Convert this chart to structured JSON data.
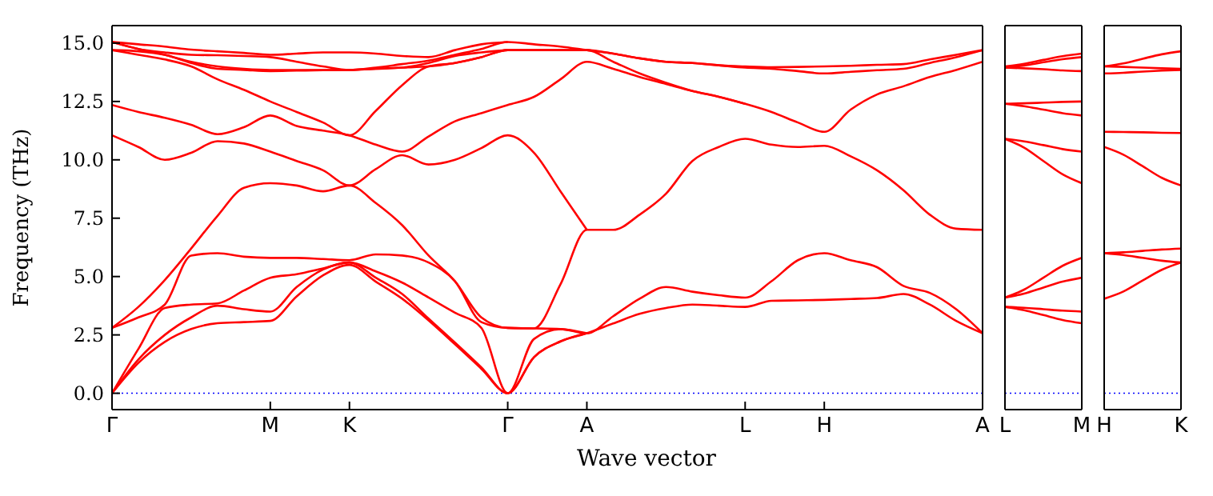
{
  "chart_data": [
    {
      "type": "line",
      "xlabel": "Wave vector",
      "ylabel": "Frequency (THz)",
      "ylim": [
        -0.7,
        15.75
      ],
      "categories": [
        "Γ",
        null,
        null,
        null,
        null,
        null,
        "M",
        null,
        null,
        "K",
        null,
        null,
        null,
        null,
        null,
        "Γ",
        null,
        null,
        "A",
        null,
        null,
        null,
        null,
        null,
        "L",
        null,
        null,
        "H",
        null,
        null,
        null,
        null,
        null,
        "A"
      ],
      "yticks": [
        {
          "value": 0,
          "label": "0.0"
        },
        {
          "value": 2.5,
          "label": "2.5"
        },
        {
          "value": 5,
          "label": "5.0"
        },
        {
          "value": 7.5,
          "label": "7.5"
        },
        {
          "value": 10,
          "label": "10.0"
        },
        {
          "value": 12.5,
          "label": "12.5"
        },
        {
          "value": 15,
          "label": "15.0"
        }
      ],
      "marker": "none",
      "line_style": "solid",
      "ref_lines": [
        {
          "axis": "y",
          "value": 0,
          "color": "#0000ff",
          "line_style": "dotted"
        }
      ],
      "series": [
        {
          "color": "#ff0000",
          "values": [
            0,
            1.3,
            2.2,
            2.75,
            3.0,
            3.05,
            3.1,
            4.15,
            5.05,
            5.5,
            4.78,
            4.05,
            3.12,
            2.1,
            1.05,
            0,
            1.55,
            2.22,
            2.57,
            2.99,
            3.4,
            3.65,
            3.8,
            3.75,
            3.7,
            3.96,
            3.98,
            4.0,
            4.04,
            4.08,
            4.25,
            3.8,
            3.1,
            2.57
          ]
        },
        {
          "color": "#ff0000",
          "values": [
            0,
            1.45,
            2.5,
            3.25,
            3.75,
            3.6,
            3.5,
            4.55,
            5.3,
            5.6,
            4.95,
            4.25,
            3.2,
            2.17,
            1.11,
            0,
            1.55,
            2.22,
            2.57,
            null,
            null,
            null,
            null,
            null,
            null,
            null,
            null,
            null,
            null,
            null,
            null,
            null,
            null,
            null
          ]
        },
        {
          "color": "#ff0000",
          "values": [
            0,
            1.9,
            3.65,
            3.8,
            3.85,
            4.4,
            4.95,
            5.1,
            5.35,
            5.6,
            5.22,
            4.74,
            4.1,
            3.45,
            2.8,
            0,
            2.33,
            2.75,
            2.57,
            3.3,
            4.05,
            4.55,
            4.35,
            4.2,
            4.1,
            4.8,
            5.7,
            6.0,
            5.7,
            5.4,
            4.6,
            4.3,
            3.6,
            2.57
          ]
        },
        {
          "color": "#ff0000",
          "values": [
            2.8,
            3.25,
            3.8,
            5.9,
            6.0,
            5.85,
            5.8,
            5.8,
            5.75,
            5.7,
            5.95,
            5.9,
            5.6,
            4.8,
            3.05,
            2.8,
            2.78,
            2.75,
            2.57,
            null,
            null,
            null,
            null,
            null,
            null,
            null,
            null,
            null,
            null,
            null,
            null,
            null,
            null,
            null
          ]
        },
        {
          "color": "#ff0000",
          "values": [
            2.8,
            3.7,
            4.85,
            6.2,
            7.6,
            8.8,
            9.0,
            8.9,
            8.65,
            8.9,
            8.15,
            7.2,
            5.9,
            4.8,
            3.25,
            2.8,
            2.78,
            4.67,
            7.0,
            7.0,
            7.65,
            8.55,
            9.95,
            10.55,
            10.9,
            10.65,
            10.55,
            10.6,
            10.15,
            9.55,
            8.7,
            7.65,
            7.05,
            7.0
          ]
        },
        {
          "color": "#ff0000",
          "values": [
            11.05,
            10.55,
            10.0,
            10.3,
            10.8,
            10.7,
            10.35,
            9.95,
            9.55,
            8.9,
            9.6,
            10.2,
            9.8,
            10.0,
            10.5,
            11.05,
            10.3,
            8.65,
            7.0,
            null,
            null,
            null,
            null,
            null,
            null,
            null,
            null,
            null,
            null,
            null,
            null,
            null,
            null,
            null
          ]
        },
        {
          "color": "#ff0000",
          "values": [
            12.35,
            12.05,
            11.8,
            11.5,
            11.1,
            11.4,
            11.9,
            11.45,
            11.25,
            11.05,
            10.65,
            10.35,
            11.0,
            11.65,
            12.0,
            12.35,
            12.7,
            13.45,
            14.2,
            13.9,
            13.55,
            13.25,
            12.95,
            12.7,
            12.4,
            12.05,
            11.6,
            11.2,
            12.15,
            12.8,
            13.15,
            13.55,
            13.85,
            14.2
          ]
        },
        {
          "color": "#ff0000",
          "values": [
            14.7,
            14.5,
            14.3,
            14.0,
            13.45,
            13.0,
            12.5,
            12.05,
            11.6,
            11.05,
            12.1,
            13.2,
            14.0,
            14.15,
            14.4,
            14.7,
            14.7,
            14.7,
            14.7,
            14.2,
            13.7,
            13.3,
            12.95,
            12.7,
            12.4,
            null,
            null,
            null,
            null,
            null,
            null,
            null,
            null,
            null
          ]
        },
        {
          "color": "#ff0000",
          "values": [
            14.7,
            14.65,
            14.5,
            14.15,
            13.9,
            13.85,
            13.8,
            13.82,
            13.84,
            13.85,
            13.9,
            13.95,
            14.0,
            14.15,
            14.4,
            14.7,
            14.7,
            14.7,
            14.7,
            14.55,
            14.35,
            14.2,
            14.15,
            14.05,
            13.95,
            13.9,
            13.8,
            13.7,
            13.77,
            13.84,
            13.9,
            14.15,
            14.4,
            14.7
          ]
        },
        {
          "color": "#ff0000",
          "values": [
            15.05,
            14.75,
            14.5,
            14.2,
            14.0,
            13.9,
            13.85,
            13.85,
            13.85,
            13.85,
            13.9,
            13.95,
            14.15,
            14.45,
            14.6,
            14.7,
            null,
            null,
            null,
            null,
            null,
            null,
            null,
            null,
            null,
            null,
            null,
            null,
            null,
            null,
            null,
            null,
            null,
            null
          ]
        },
        {
          "color": "#ff0000",
          "values": [
            15.05,
            14.75,
            14.6,
            14.5,
            14.48,
            14.45,
            14.4,
            14.2,
            14.0,
            13.85,
            13.95,
            14.1,
            14.25,
            14.5,
            14.75,
            15.05,
            14.95,
            14.85,
            14.7,
            14.55,
            14.35,
            14.2,
            14.15,
            14.05,
            14.0,
            13.97,
            13.98,
            14.0,
            14.03,
            14.07,
            14.1,
            14.3,
            14.5,
            14.7
          ]
        },
        {
          "color": "#ff0000",
          "values": [
            15.05,
            14.95,
            14.85,
            14.72,
            14.65,
            14.58,
            14.5,
            14.55,
            14.6,
            14.6,
            14.55,
            14.45,
            14.4,
            14.7,
            14.95,
            15.05,
            null,
            null,
            null,
            null,
            null,
            null,
            null,
            null,
            null,
            null,
            null,
            null,
            null,
            null,
            null,
            null,
            null,
            null
          ]
        }
      ]
    },
    {
      "type": "line",
      "ylim": [
        -0.7,
        15.75
      ],
      "tick_labels": "x",
      "categories": [
        "L",
        null,
        null,
        null,
        "M"
      ],
      "yticks": [
        {
          "value": 0,
          "label": null
        },
        {
          "value": 2.5,
          "label": null
        },
        {
          "value": 5,
          "label": null
        },
        {
          "value": 7.5,
          "label": null
        },
        {
          "value": 10,
          "label": null
        },
        {
          "value": 12.5,
          "label": null
        },
        {
          "value": 15,
          "label": null
        }
      ],
      "marker": "none",
      "line_style": "solid",
      "ref_lines": [
        {
          "axis": "y",
          "value": 0,
          "color": "#0000ff",
          "line_style": "dotted"
        }
      ],
      "series": [
        {
          "color": "#ff0000",
          "values": [
            3.7,
            3.56,
            3.35,
            3.14,
            3.0
          ]
        },
        {
          "color": "#ff0000",
          "values": [
            3.7,
            3.66,
            3.6,
            3.54,
            3.5
          ]
        },
        {
          "color": "#ff0000",
          "values": [
            4.1,
            4.27,
            4.53,
            4.78,
            4.95
          ]
        },
        {
          "color": "#ff0000",
          "values": [
            4.1,
            4.44,
            4.95,
            5.46,
            5.8
          ]
        },
        {
          "color": "#ff0000",
          "values": [
            10.9,
            10.52,
            9.95,
            9.38,
            9.0
          ]
        },
        {
          "color": "#ff0000",
          "values": [
            10.9,
            10.79,
            10.63,
            10.46,
            10.35
          ]
        },
        {
          "color": "#ff0000",
          "values": [
            12.4,
            12.3,
            12.15,
            12.0,
            11.9
          ]
        },
        {
          "color": "#ff0000",
          "values": [
            12.4,
            12.42,
            12.45,
            12.48,
            12.5
          ]
        },
        {
          "color": "#ff0000",
          "values": [
            13.95,
            13.92,
            13.88,
            13.83,
            13.8
          ]
        },
        {
          "color": "#ff0000",
          "values": [
            13.95,
            14.04,
            14.18,
            14.31,
            14.4
          ]
        },
        {
          "color": "#ff0000",
          "values": [
            14.0,
            14.11,
            14.28,
            14.44,
            14.55
          ]
        }
      ]
    },
    {
      "type": "line",
      "ylim": [
        -0.7,
        15.75
      ],
      "tick_labels": "x",
      "categories": [
        "H",
        null,
        null,
        null,
        "K"
      ],
      "yticks": [
        {
          "value": 0,
          "label": null
        },
        {
          "value": 2.5,
          "label": null
        },
        {
          "value": 5,
          "label": null
        },
        {
          "value": 7.5,
          "label": null
        },
        {
          "value": 10,
          "label": null
        },
        {
          "value": 12.5,
          "label": null
        },
        {
          "value": 15,
          "label": null
        }
      ],
      "marker": "none",
      "line_style": "solid",
      "ref_lines": [
        {
          "axis": "y",
          "value": 0,
          "color": "#0000ff",
          "line_style": "dotted"
        }
      ],
      "series": [
        {
          "color": "#ff0000",
          "values": [
            14.0,
            14.13,
            14.33,
            14.52,
            14.65
          ]
        },
        {
          "color": "#ff0000",
          "values": [
            13.7,
            13.73,
            13.78,
            13.82,
            13.85
          ]
        },
        {
          "color": "#ff0000",
          "values": [
            14.0,
            13.98,
            13.95,
            13.92,
            13.9
          ]
        },
        {
          "color": "#ff0000",
          "values": [
            11.2,
            11.19,
            11.18,
            11.16,
            11.15
          ]
        },
        {
          "color": "#ff0000",
          "values": [
            10.55,
            10.22,
            9.73,
            9.23,
            8.9
          ]
        },
        {
          "color": "#ff0000",
          "values": [
            6.0,
            6.04,
            6.1,
            6.16,
            6.2
          ]
        },
        {
          "color": "#ff0000",
          "values": [
            6.0,
            5.92,
            5.8,
            5.68,
            5.6
          ]
        },
        {
          "color": "#ff0000",
          "values": [
            4.05,
            4.36,
            4.83,
            5.29,
            5.6
          ]
        }
      ]
    }
  ]
}
